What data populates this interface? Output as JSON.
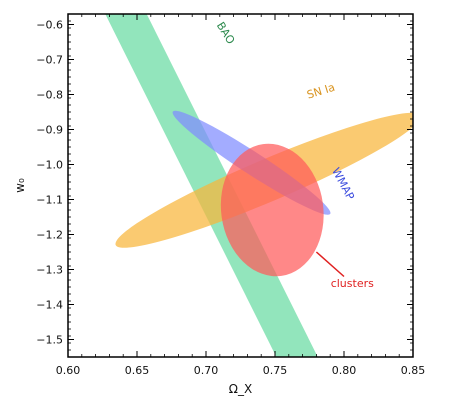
{
  "chart_data": {
    "type": "contour",
    "xlabel": "Ω_X",
    "ylabel": "w₀",
    "xlim": [
      0.6,
      0.85
    ],
    "ylim": [
      -1.55,
      -0.57
    ],
    "x_ticks": [
      "0.60",
      "0.65",
      "0.70",
      "0.75",
      "0.80",
      "0.85"
    ],
    "x_tick_values": [
      0.6,
      0.65,
      0.7,
      0.75,
      0.8,
      0.85
    ],
    "y_ticks": [
      "−0.6",
      "−0.7",
      "−0.8",
      "−0.9",
      "−1.0",
      "−1.1",
      "−1.2",
      "−1.3",
      "−1.4",
      "−1.5"
    ],
    "y_tick_values": [
      -0.6,
      -0.7,
      -0.8,
      -0.9,
      -1.0,
      -1.1,
      -1.2,
      -1.3,
      -1.4,
      -1.5
    ],
    "grid": false,
    "legend": "none",
    "regions": [
      {
        "name": "BAO",
        "shape": "band",
        "color": "#7fe0b0",
        "centerline": [
          [
            0.642,
            -0.57
          ],
          [
            0.766,
            -1.55
          ]
        ],
        "width_x": 0.03
      },
      {
        "name": "SN Ia",
        "shape": "ellipse",
        "color": "#f8b63a",
        "center": [
          0.745,
          -1.045
        ],
        "semi_axes": [
          0.12,
          0.06
        ],
        "tilt": "rising to the right"
      },
      {
        "name": "WMAP",
        "shape": "ellipse",
        "color": "#7f8cff",
        "center": [
          0.733,
          -0.995
        ],
        "semi_axes": [
          0.068,
          0.032
        ],
        "tilt": "falling to the right"
      },
      {
        "name": "clusters",
        "shape": "ellipse",
        "color": "#ff5a5a",
        "center": [
          0.748,
          -1.13
        ],
        "semi_axes": [
          0.037,
          0.19
        ],
        "tilt": "near vertical"
      }
    ],
    "labels": [
      {
        "text": "BAO",
        "color": "#2d8a4e",
        "at": [
          0.712,
          -0.63
        ],
        "rotate": 58
      },
      {
        "text": "SN Ia",
        "color": "#d99420",
        "at": [
          0.784,
          -0.8
        ],
        "rotate": -17
      },
      {
        "text": "WMAP",
        "color": "#3c4cde",
        "at": [
          0.797,
          -1.06
        ],
        "rotate": 62
      },
      {
        "text": "clusters",
        "color": "#e02020",
        "at": [
          0.806,
          -1.35
        ],
        "rotate": 0
      }
    ],
    "annotations": [
      {
        "text_ref": "clusters",
        "arrow_from": [
          0.8,
          -1.32
        ],
        "arrow_to": [
          0.78,
          -1.25
        ],
        "color": "#e02020"
      }
    ]
  }
}
